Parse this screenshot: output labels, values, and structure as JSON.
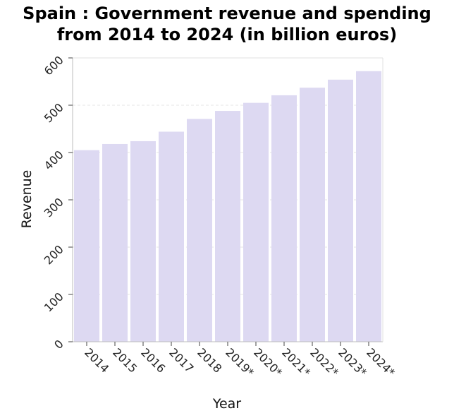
{
  "chart_data": {
    "type": "bar",
    "title_line1": "Spain : Government revenue and spending",
    "title_line2": "from 2014 to 2024 (in billion euros)",
    "xlabel": "Year",
    "ylabel": "Revenue",
    "categories": [
      "2014",
      "2015",
      "2016",
      "2017",
      "2018",
      "2019*",
      "2020*",
      "2021*",
      "2022*",
      "2023*",
      "2024*"
    ],
    "values": [
      405,
      418,
      424,
      444,
      471,
      488,
      505,
      521,
      537,
      554,
      572
    ],
    "ylim": [
      0,
      600
    ],
    "yticks": [
      0,
      100,
      200,
      300,
      400,
      500,
      600
    ],
    "grid": true,
    "bar_color": "#ddd9f2"
  }
}
